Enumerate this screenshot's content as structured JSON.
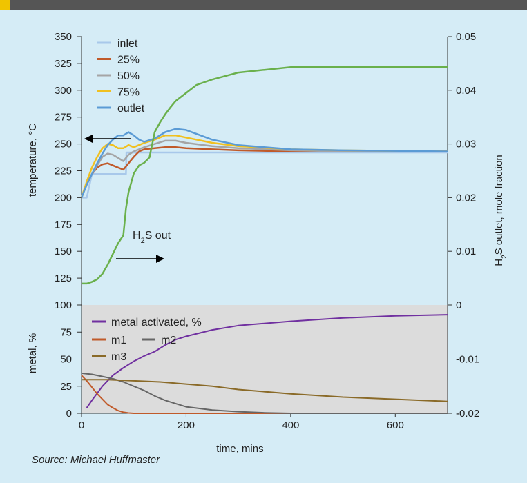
{
  "colors": {
    "background": "#d5ecf6",
    "lower_panel": "#dcdcdc",
    "header_bar": "#555555",
    "accent": "#f0c400"
  },
  "source": "Source: Michael Huffmaster",
  "chart_data": [
    {
      "type": "line",
      "panel": "upper",
      "ylabel": "temperature, °C",
      "y2label_main": "H",
      "y2label_sub": "2",
      "y2label_rest": "S outlet, mole fraction",
      "xlim": [
        0,
        700
      ],
      "ylim": [
        100,
        350
      ],
      "y2lim": [
        0,
        0.05
      ],
      "yticks": [
        100,
        125,
        150,
        175,
        200,
        225,
        250,
        275,
        300,
        325,
        350
      ],
      "y2ticks": [
        0,
        0.01,
        0.02,
        0.03,
        0.04,
        0.05
      ],
      "y2ticklabels": [
        "0",
        "0.01",
        "0.02",
        "0.03",
        "0.04",
        "0.05"
      ],
      "legend_position": "top-left",
      "annotations": [
        {
          "text_main": "H",
          "text_sub": "2",
          "text_rest": "S out",
          "points_to": "right-axis"
        },
        {
          "points_to": "left-axis"
        }
      ],
      "series": [
        {
          "name": "inlet",
          "color": "#a8c8ea",
          "axis": "left",
          "x": [
            0,
            10,
            20,
            30,
            85,
            86,
            100,
            150,
            700
          ],
          "y": [
            200,
            200,
            222,
            222,
            222,
            242,
            242,
            242,
            242
          ]
        },
        {
          "name": "25%",
          "color": "#c05a2a",
          "axis": "left",
          "x": [
            0,
            10,
            20,
            30,
            40,
            50,
            60,
            70,
            80,
            90,
            100,
            110,
            120,
            140,
            160,
            180,
            200,
            250,
            300,
            400,
            500,
            700
          ],
          "y": [
            200,
            213,
            222,
            228,
            231,
            232,
            230,
            228,
            226,
            232,
            238,
            243,
            245,
            246,
            247,
            247,
            246,
            245,
            244,
            243,
            243,
            243
          ]
        },
        {
          "name": "50%",
          "color": "#a5a5a5",
          "axis": "left",
          "x": [
            0,
            10,
            20,
            30,
            40,
            50,
            60,
            70,
            80,
            90,
            100,
            110,
            120,
            140,
            160,
            180,
            200,
            250,
            300,
            400,
            500,
            700
          ],
          "y": [
            200,
            212,
            222,
            230,
            238,
            241,
            240,
            237,
            234,
            240,
            243,
            245,
            247,
            250,
            253,
            253,
            251,
            248,
            246,
            244,
            243,
            243
          ]
        },
        {
          "name": "75%",
          "color": "#f0c020",
          "axis": "left",
          "x": [
            0,
            10,
            20,
            30,
            40,
            50,
            60,
            70,
            80,
            90,
            100,
            110,
            120,
            140,
            160,
            180,
            200,
            250,
            300,
            400,
            500,
            700
          ],
          "y": [
            200,
            215,
            228,
            238,
            246,
            250,
            249,
            246,
            246,
            249,
            247,
            249,
            251,
            254,
            258,
            258,
            256,
            251,
            248,
            245,
            244,
            243
          ]
        },
        {
          "name": "outlet",
          "color": "#5b9bd5",
          "axis": "left",
          "x": [
            0,
            10,
            20,
            30,
            40,
            50,
            60,
            70,
            80,
            90,
            100,
            110,
            120,
            140,
            160,
            180,
            200,
            250,
            300,
            400,
            500,
            700
          ],
          "y": [
            200,
            212,
            222,
            232,
            241,
            249,
            254,
            258,
            258,
            261,
            258,
            254,
            252,
            255,
            261,
            264,
            263,
            254,
            249,
            245,
            244,
            243
          ]
        },
        {
          "name": "H2S out",
          "color": "#6ab04c",
          "axis": "right",
          "x": [
            0,
            10,
            20,
            30,
            40,
            50,
            60,
            70,
            80,
            85,
            90,
            100,
            110,
            120,
            130,
            140,
            150,
            160,
            170,
            180,
            200,
            220,
            250,
            300,
            350,
            400,
            500,
            600,
            700
          ],
          "y": [
            0.004,
            0.004,
            0.0043,
            0.0048,
            0.0058,
            0.0075,
            0.0095,
            0.0115,
            0.013,
            0.018,
            0.021,
            0.0245,
            0.026,
            0.0265,
            0.0275,
            0.0322,
            0.034,
            0.0355,
            0.0368,
            0.038,
            0.0395,
            0.041,
            0.042,
            0.0433,
            0.0438,
            0.0443,
            0.0443,
            0.0443,
            0.0443
          ]
        }
      ]
    },
    {
      "type": "line",
      "panel": "lower",
      "ylabel": "metal, %",
      "xlabel": "time, mins",
      "xlim": [
        0,
        700
      ],
      "ylim": [
        0,
        100
      ],
      "y2lim": [
        -0.02,
        0
      ],
      "xticks": [
        0,
        200,
        400,
        600
      ],
      "yticks": [
        0,
        25,
        50,
        75,
        100
      ],
      "y2ticks": [
        -0.02,
        -0.01,
        0
      ],
      "y2ticklabels": [
        "-0.02",
        "-0.01",
        "0"
      ],
      "legend_position": "top-left",
      "series": [
        {
          "name": "metal activated, %",
          "color": "#7030a0",
          "x": [
            10,
            20,
            40,
            60,
            80,
            100,
            120,
            140,
            160,
            180,
            200,
            250,
            300,
            400,
            500,
            600,
            700
          ],
          "y": [
            5,
            12,
            25,
            35,
            42,
            48,
            53,
            57,
            63,
            68,
            71,
            77,
            81,
            85,
            88,
            90,
            91
          ]
        },
        {
          "name": "m1",
          "color": "#c05a2a",
          "x": [
            0,
            10,
            20,
            30,
            40,
            50,
            60,
            70,
            80,
            90,
            100,
            700
          ],
          "y": [
            35,
            30,
            24,
            18,
            13,
            8,
            5,
            2.5,
            1,
            0.3,
            0,
            0
          ]
        },
        {
          "name": "m2",
          "color": "#666666",
          "x": [
            0,
            20,
            40,
            60,
            80,
            100,
            120,
            140,
            160,
            180,
            200,
            250,
            300,
            350,
            400,
            500,
            700
          ],
          "y": [
            37,
            36,
            34,
            32,
            29,
            25,
            21,
            16,
            12,
            9,
            6,
            3,
            1.5,
            0.5,
            0,
            0,
            0
          ]
        },
        {
          "name": "m3",
          "color": "#8a6a28",
          "x": [
            0,
            50,
            100,
            150,
            200,
            250,
            300,
            400,
            500,
            600,
            700
          ],
          "y": [
            31,
            31,
            30,
            29,
            27,
            25,
            22,
            18,
            15,
            13,
            11
          ]
        }
      ]
    }
  ]
}
